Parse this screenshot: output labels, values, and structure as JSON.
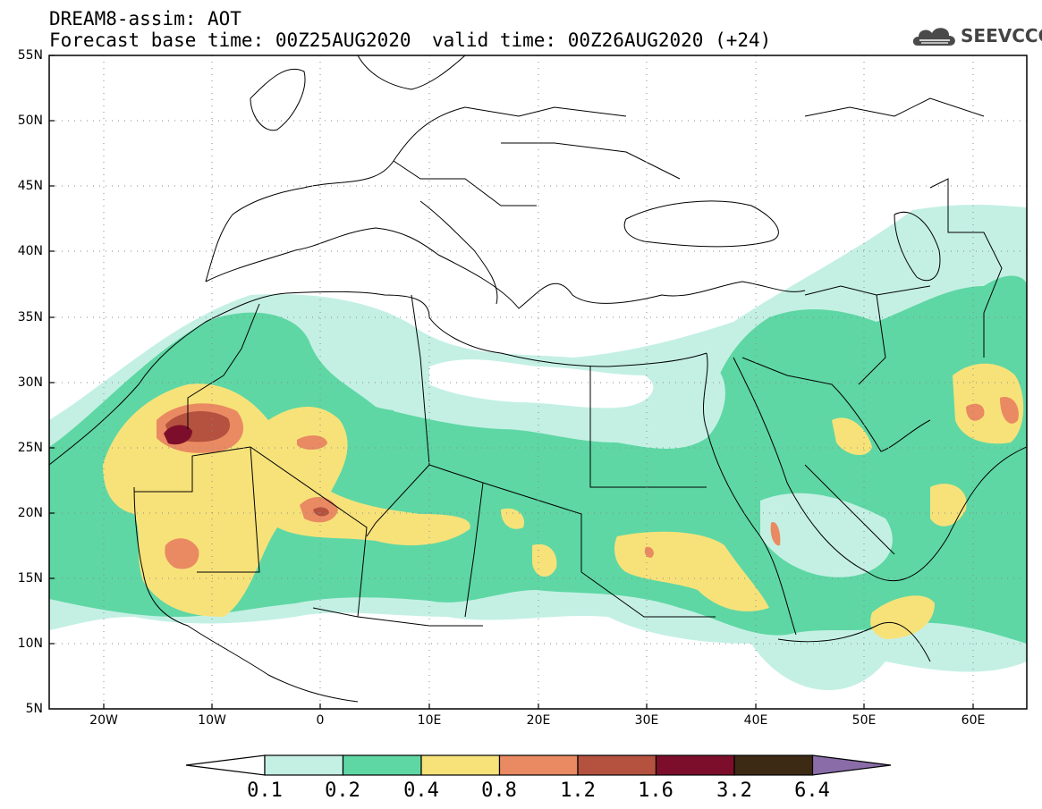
{
  "header": {
    "title": "DREAM8-assim: AOT",
    "forecast_base": "Forecast base time: 00Z25AUG2020",
    "valid_time": "valid time: 00Z26AUG2020 (+24)"
  },
  "logo": {
    "text": "SEEVCCC",
    "icon": "cloud-icon"
  },
  "map": {
    "lat_labels": [
      "55N",
      "50N",
      "45N",
      "40N",
      "35N",
      "30N",
      "25N",
      "20N",
      "15N",
      "10N",
      "5N"
    ],
    "lon_labels": [
      "20W",
      "10W",
      "0",
      "10E",
      "20E",
      "30E",
      "40E",
      "50E",
      "60E"
    ],
    "lat_range": [
      5,
      55
    ],
    "lon_range": [
      -25,
      65
    ],
    "grid": "dotted"
  },
  "colorbar": {
    "levels": [
      "0.1",
      "0.2",
      "0.4",
      "0.8",
      "1.2",
      "1.6",
      "3.2",
      "6.4"
    ],
    "colors": [
      "#ffffff",
      "#c4f0e4",
      "#5ed7a4",
      "#f7e27a",
      "#e98a62",
      "#b4513f",
      "#7d0e2b",
      "#3c2a14",
      "#8a6ca8"
    ]
  }
}
